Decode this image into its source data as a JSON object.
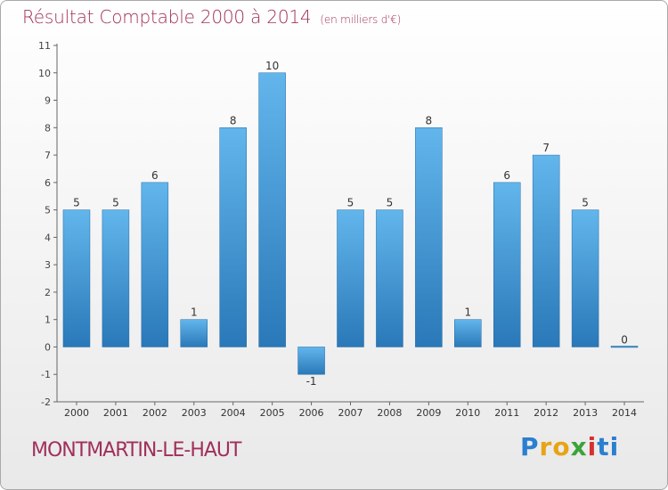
{
  "header": {
    "title": "Résultat Comptable 2000 à 2014",
    "subtitle": "(en milliers d'€)"
  },
  "footer": {
    "commune": "MONTMARTIN-LE-HAUT",
    "logo": [
      "P",
      "r",
      "o",
      "x",
      "i",
      "t",
      "i"
    ]
  },
  "colors": {
    "bar_top": "#62b6ec",
    "bar_bottom": "#2a78b8",
    "title": "#a0305a",
    "axis": "#666666",
    "grid": "#c8c8c8",
    "logo": [
      "#2a7fd0",
      "#e8a417",
      "#e8a417",
      "#3ba33a",
      "#d83030",
      "#2a7fd0",
      "#2a7fd0"
    ]
  },
  "chart_data": {
    "type": "bar",
    "title": "Résultat Comptable 2000 à 2014",
    "subtitle": "(en milliers d'€)",
    "categories": [
      "2000",
      "2001",
      "2002",
      "2003",
      "2004",
      "2005",
      "2006",
      "2007",
      "2008",
      "2009",
      "2010",
      "2011",
      "2012",
      "2013",
      "2014"
    ],
    "values": [
      5,
      5,
      6,
      1,
      8,
      10,
      -1,
      5,
      5,
      8,
      1,
      6,
      7,
      5,
      0
    ],
    "data_labels": [
      "5",
      "5",
      "6",
      "1",
      "8",
      "10",
      "-1",
      "5",
      "5",
      "8",
      "1",
      "6",
      "7",
      "5",
      "0"
    ],
    "y_ticks": [
      "-2",
      "-1",
      "0",
      "1",
      "2",
      "3",
      "4",
      "5",
      "6",
      "7",
      "8",
      "9",
      "10",
      "11"
    ],
    "ylim": [
      -2,
      11
    ],
    "xlabel": "",
    "ylabel": "",
    "grid": false,
    "legend": "none"
  }
}
